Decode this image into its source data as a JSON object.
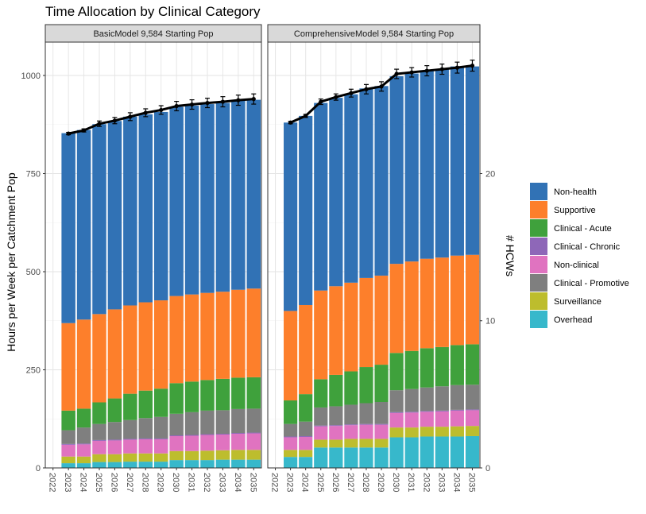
{
  "chart_data": {
    "type": "bar",
    "stacked": true,
    "title": "Time Allocation by Clinical Category",
    "ylabel": "Hours per Week per Catchment Pop",
    "y2label": "# HCWs",
    "ylim": [
      0,
      1085
    ],
    "y_ticks": [
      0,
      250,
      500,
      750,
      1000
    ],
    "y2_ticks": [
      0,
      10,
      20
    ],
    "y2_per_hcw": 37.5,
    "grid": true,
    "legend_position": "right",
    "years": [
      "2022",
      "2023",
      "2024",
      "2025",
      "2026",
      "2027",
      "2028",
      "2029",
      "2030",
      "2031",
      "2032",
      "2033",
      "2034",
      "2035"
    ],
    "categories_order": [
      "Overhead",
      "Surveillance",
      "Clinical - Promotive",
      "Non-clinical",
      "Clinical - Chronic",
      "Clinical - Acute",
      "Supportive",
      "Non-health"
    ],
    "colors": {
      "Non-health": "#3172b5",
      "Supportive": "#fd7f2b",
      "Clinical - Acute": "#3fa13c",
      "Clinical - Chronic": "#8e67b8",
      "Non-clinical": "#e073c0",
      "Clinical - Promotive": "#7f7f7f",
      "Surveillance": "#bdbd2d",
      "Overhead": "#37b8cb"
    },
    "legend": [
      "Non-health",
      "Supportive",
      "Clinical - Acute",
      "Clinical - Chronic",
      "Non-clinical",
      "Clinical - Promotive",
      "Surveillance",
      "Overhead"
    ],
    "panels": [
      {
        "title": "BasicModel 9,584 Starting Pop",
        "bar_years": [
          "2023",
          "2024",
          "2025",
          "2026",
          "2027",
          "2028",
          "2029",
          "2030",
          "2031",
          "2032",
          "2033",
          "2034",
          "2035"
        ],
        "series": [
          {
            "name": "Overhead",
            "values": [
              12,
              12,
              15,
              15,
              16,
              16,
              16,
              20,
              20,
              20,
              21,
              21,
              21
            ]
          },
          {
            "name": "Surveillance",
            "values": [
              17,
              17,
              20,
              20,
              21,
              21,
              21,
              23,
              23,
              24,
              24,
              25,
              25
            ]
          },
          {
            "name": "Non-clinical",
            "values": [
              30,
              31,
              34,
              35,
              35,
              36,
              36,
              38,
              39,
              40,
              40,
              41,
              42
            ]
          },
          {
            "name": "Clinical - Chronic",
            "values": [
              2,
              2,
              2,
              2,
              2,
              2,
              2,
              2,
              2,
              2,
              2,
              2,
              2
            ]
          },
          {
            "name": "Clinical - Promotive",
            "values": [
              35,
              41,
              41,
              45,
              48,
              52,
              55,
              55,
              58,
              60,
              60,
              61,
              61
            ]
          },
          {
            "name": "Clinical - Acute",
            "values": [
              50,
              48,
              55,
              60,
              67,
              70,
              72,
              78,
              78,
              78,
              80,
              80,
              80
            ]
          },
          {
            "name": "Supportive",
            "values": [
              223,
              227,
              225,
              227,
              225,
              225,
              225,
              222,
              222,
              222,
              222,
              224,
              226
            ]
          },
          {
            "name": "Non-health",
            "values": [
              484,
              483,
              484,
              480,
              481,
              479,
              480,
              482,
              481,
              481,
              481,
              482,
              481
            ]
          }
        ],
        "line": [
          852,
          860,
          877,
          885,
          895,
          905,
          912,
          922,
          926,
          930,
          933,
          937,
          940
        ],
        "line_err": [
          3,
          4,
          7,
          8,
          10,
          10,
          11,
          12,
          12,
          12,
          13,
          13,
          13
        ]
      },
      {
        "title": "ComprehensiveModel 9,584 Starting Pop",
        "bar_years": [
          "2023",
          "2024",
          "2025",
          "2026",
          "2027",
          "2028",
          "2029",
          "2030",
          "2031",
          "2032",
          "2033",
          "2034",
          "2035"
        ],
        "series": [
          {
            "name": "Overhead",
            "values": [
              28,
              28,
              52,
              52,
              52,
              52,
              52,
              78,
              78,
              80,
              80,
              80,
              81
            ]
          },
          {
            "name": "Surveillance",
            "values": [
              18,
              18,
              20,
              20,
              22,
              22,
              22,
              25,
              25,
              25,
              25,
              26,
              26
            ]
          },
          {
            "name": "Non-clinical",
            "values": [
              32,
              33,
              34,
              35,
              35,
              36,
              36,
              37,
              38,
              38,
              39,
              40,
              40
            ]
          },
          {
            "name": "Clinical - Chronic",
            "values": [
              2,
              2,
              2,
              2,
              2,
              2,
              2,
              2,
              2,
              2,
              2,
              2,
              2
            ]
          },
          {
            "name": "Clinical - Promotive",
            "values": [
              32,
              37,
              46,
              48,
              50,
              53,
              56,
              56,
              58,
              60,
              62,
              63,
              63
            ]
          },
          {
            "name": "Clinical - Acute",
            "values": [
              60,
              70,
              72,
              80,
              85,
              92,
              95,
              95,
              97,
              100,
              100,
              102,
              103
            ]
          },
          {
            "name": "Supportive",
            "values": [
              228,
              227,
              226,
              226,
              226,
              227,
              227,
              227,
              228,
              228,
              228,
              228,
              228
            ]
          },
          {
            "name": "Non-health",
            "values": [
              480,
              482,
              478,
              480,
              480,
              483,
              483,
              478,
              479,
              480,
              480,
              482,
              480
            ]
          }
        ],
        "line": [
          880,
          897,
          933,
          945,
          955,
          965,
          972,
          1004,
          1008,
          1012,
          1016,
          1020,
          1025
        ],
        "line_err": [
          3,
          4,
          7,
          8,
          10,
          12,
          12,
          12,
          12,
          13,
          13,
          14,
          14
        ]
      }
    ]
  }
}
